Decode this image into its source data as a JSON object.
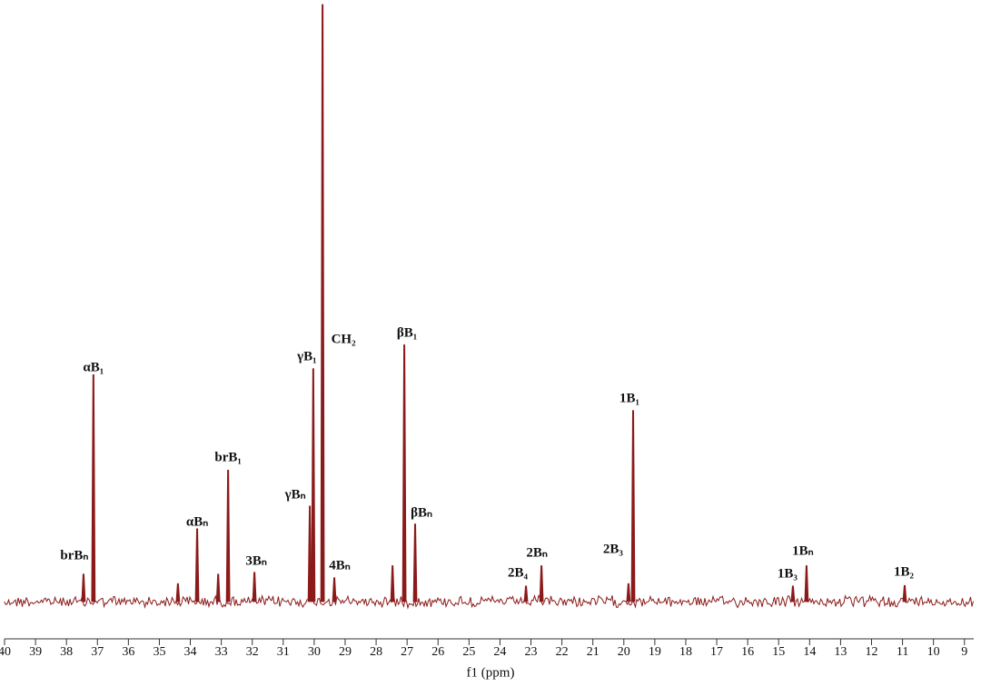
{
  "chart_data": {
    "type": "spectrum",
    "x_label": "f1 (ppm)",
    "xlim": [
      40,
      8.7
    ],
    "xticks": [
      40,
      39,
      38,
      37,
      36,
      35,
      34,
      33,
      32,
      31,
      30,
      29,
      28,
      27,
      26,
      25,
      24,
      23,
      22,
      21,
      20,
      19,
      18,
      17,
      16,
      15,
      14,
      13,
      12,
      11,
      10,
      9
    ],
    "color": "#8b1a1a",
    "x": [
      37.45,
      37.13,
      34.4,
      33.78,
      33.1,
      32.78,
      31.93,
      30.14,
      30.03,
      29.73,
      29.35,
      27.47,
      27.09,
      26.74,
      23.16,
      22.66,
      19.85,
      19.7,
      14.54,
      14.1,
      10.93
    ],
    "values": [
      4.6,
      38,
      3,
      12.2,
      4.6,
      22,
      4.9,
      16,
      39,
      100,
      4,
      6,
      43,
      13,
      2.6,
      6,
      3,
      32,
      2.6,
      6,
      2.7
    ],
    "peak_labels": [
      "brBₙ",
      "αB₁",
      null,
      "αBₙ",
      null,
      "brB₁",
      "3Bₙ",
      "γBₙ",
      "γB₁",
      "CH₂",
      "4Bₙ",
      null,
      "βB₁",
      "βBₙ",
      "2B₄",
      "2Bₙ",
      "2B₃",
      "1B₁",
      "1B₃",
      "1Bₙ",
      "1B₂"
    ]
  }
}
